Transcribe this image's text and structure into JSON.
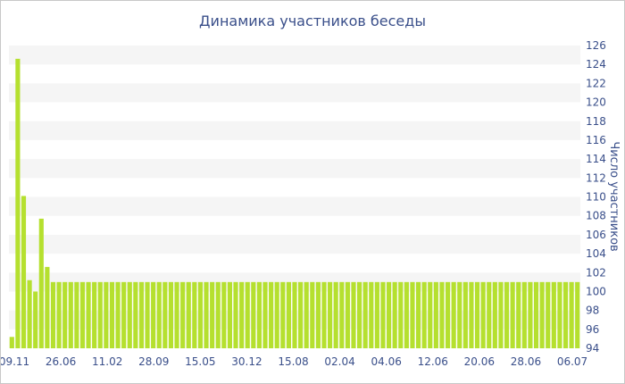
{
  "chart_data": {
    "type": "bar",
    "title": "Динамика участников беседы",
    "xlabel": "",
    "ylabel": "Число участников",
    "ylim": [
      94,
      126
    ],
    "y_ticks": [
      94,
      96,
      98,
      100,
      102,
      104,
      106,
      108,
      110,
      112,
      114,
      116,
      118,
      120,
      122,
      124,
      126
    ],
    "x_tick_labels": [
      "09.11",
      "26.06",
      "11.02",
      "28.09",
      "15.05",
      "30.12",
      "15.08",
      "02.04",
      "04.06",
      "12.06",
      "20.06",
      "28.06",
      "06.07"
    ],
    "values": [
      95.2,
      124.6,
      110.1,
      101.2,
      100.0,
      107.7,
      102.6,
      101.0,
      101.0,
      101.0,
      101.0,
      101.0,
      101.0,
      101.0,
      101.0,
      101.0,
      101.0,
      101.0,
      101.0,
      101.0,
      101.0,
      101.0,
      101.0,
      101.0,
      101.0,
      101.0,
      101.0,
      101.0,
      101.0,
      101.0,
      101.0,
      101.0,
      101.0,
      101.0,
      101.0,
      101.0,
      101.0,
      101.0,
      101.0,
      101.0,
      101.0,
      101.0,
      101.0,
      101.0,
      101.0,
      101.0,
      101.0,
      101.0,
      101.0,
      101.0,
      101.0,
      101.0,
      101.0,
      101.0,
      101.0,
      101.0,
      101.0,
      101.0,
      101.0,
      101.0,
      101.0,
      101.0,
      101.0,
      101.0,
      101.0,
      101.0,
      101.0,
      101.0,
      101.0,
      101.0,
      101.0,
      101.0,
      101.0,
      101.0,
      101.0,
      101.0,
      101.0,
      101.0,
      101.0,
      101.0,
      101.0,
      101.0,
      101.0,
      101.0,
      101.0,
      101.0,
      101.0,
      101.0,
      101.0,
      101.0,
      101.0,
      101.0,
      101.0,
      101.0,
      101.0,
      101.0,
      101.0
    ],
    "grid": "horizontal alternating bands",
    "colors": {
      "bar": "#b5e02f",
      "band": "#f5f5f5",
      "text": "#3a4f8a"
    }
  }
}
